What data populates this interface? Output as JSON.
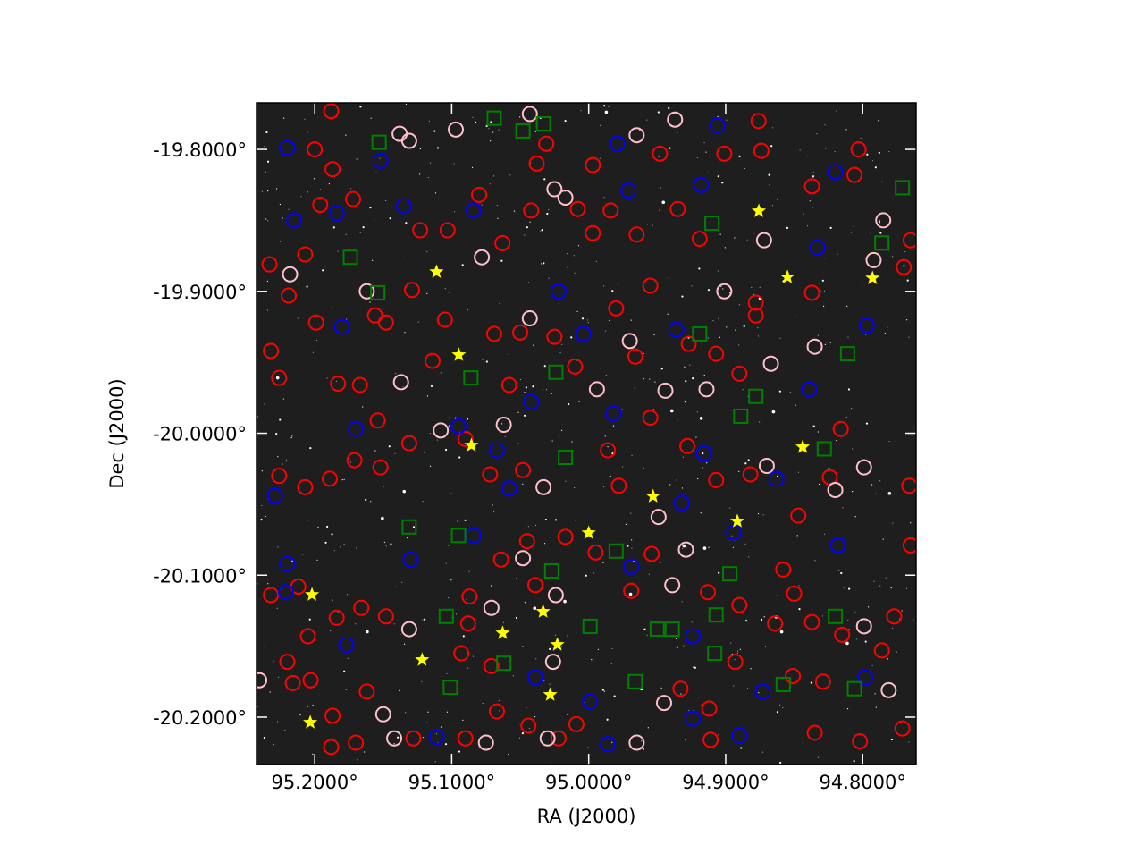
{
  "chart_data": {
    "type": "scatter",
    "xlabel": "RA (J2000)",
    "ylabel": "Dec (J2000)",
    "xlim": [
      95.2425,
      94.761
    ],
    "ylim": [
      -20.2334,
      -19.7672
    ],
    "xticks": [
      {
        "value": 95.2,
        "label": "95.2000°"
      },
      {
        "value": 95.1,
        "label": "95.1000°"
      },
      {
        "value": 95.0,
        "label": "95.0000°"
      },
      {
        "value": 94.9,
        "label": "94.9000°"
      },
      {
        "value": 94.8,
        "label": "94.8000°"
      }
    ],
    "yticks": [
      {
        "value": -19.8,
        "label": "-19.8000°"
      },
      {
        "value": -19.9,
        "label": "-19.9000°"
      },
      {
        "value": -20.0,
        "label": "-20.0000°"
      },
      {
        "value": -20.1,
        "label": "-20.1000°"
      },
      {
        "value": -20.2,
        "label": "-20.2000°"
      }
    ],
    "series": [
      {
        "color": "#ff0000",
        "marker": "circle",
        "x": [
          95.188,
          95.2,
          95.187,
          95.172,
          95.196,
          95.207,
          95.219,
          95.199,
          95.156,
          95.148,
          95.129,
          95.105,
          95.123,
          95.103,
          95.08,
          95.063,
          95.042,
          95.031,
          95.038,
          94.997,
          95.008,
          94.984,
          94.997,
          94.965,
          94.948,
          94.935,
          94.919,
          94.901,
          94.876,
          94.874,
          94.837,
          94.803,
          94.806,
          94.765,
          94.837,
          94.878,
          94.878,
          94.927,
          94.907,
          94.89,
          94.966,
          94.98,
          94.955,
          95.05,
          95.069,
          95.025,
          95.01,
          95.058,
          95.114,
          95.183,
          95.167,
          95.226,
          95.232,
          95.154,
          95.152,
          95.171,
          95.226,
          95.207,
          95.189,
          95.131,
          95.09,
          95.072,
          95.048,
          94.978,
          94.986,
          94.955,
          94.928,
          94.907,
          94.882,
          94.816,
          94.824,
          94.766,
          94.847,
          95.232,
          95.212,
          95.166,
          95.148,
          95.184,
          95.205,
          95.22,
          95.203,
          95.216,
          95.187,
          95.188,
          95.162,
          95.087,
          95.088,
          95.093,
          95.071,
          95.064,
          95.045,
          95.039,
          95.017,
          94.995,
          94.969,
          94.954,
          94.913,
          94.89,
          94.858,
          94.85,
          94.837,
          94.815,
          94.777,
          94.786,
          94.864,
          94.893,
          94.851,
          94.829,
          94.933,
          94.912,
          94.911,
          95.009,
          95.022,
          95.044,
          95.067,
          95.09,
          95.128,
          95.17,
          94.835,
          94.802,
          94.771,
          94.765,
          94.77,
          95.233
        ],
        "values": [
          -19.773,
          -19.8,
          -19.814,
          -19.835,
          -19.839,
          -19.874,
          -19.903,
          -19.922,
          -19.917,
          -19.922,
          -19.899,
          -19.92,
          -19.857,
          -19.857,
          -19.832,
          -19.866,
          -19.843,
          -19.796,
          -19.81,
          -19.811,
          -19.842,
          -19.843,
          -19.859,
          -19.86,
          -19.803,
          -19.842,
          -19.863,
          -19.803,
          -19.78,
          -19.801,
          -19.826,
          -19.8,
          -19.818,
          -19.864,
          -19.901,
          -19.908,
          -19.917,
          -19.937,
          -19.944,
          -19.958,
          -19.946,
          -19.912,
          -19.896,
          -19.929,
          -19.93,
          -19.932,
          -19.953,
          -19.966,
          -19.949,
          -19.965,
          -19.966,
          -19.961,
          -19.942,
          -19.991,
          -20.024,
          -20.019,
          -20.03,
          -20.038,
          -20.032,
          -20.007,
          -20.004,
          -20.029,
          -20.026,
          -20.037,
          -20.012,
          -19.989,
          -20.009,
          -20.033,
          -20.029,
          -19.997,
          -20.031,
          -20.037,
          -20.058,
          -20.114,
          -20.108,
          -20.123,
          -20.129,
          -20.13,
          -20.143,
          -20.161,
          -20.174,
          -20.176,
          -20.199,
          -20.221,
          -20.182,
          -20.115,
          -20.134,
          -20.155,
          -20.164,
          -20.089,
          -20.076,
          -20.107,
          -20.073,
          -20.084,
          -20.111,
          -20.085,
          -20.112,
          -20.121,
          -20.096,
          -20.113,
          -20.133,
          -20.142,
          -20.129,
          -20.153,
          -20.134,
          -20.161,
          -20.171,
          -20.175,
          -20.18,
          -20.194,
          -20.216,
          -20.205,
          -20.215,
          -20.206,
          -20.196,
          -20.215,
          -20.215,
          -20.218,
          -20.211,
          -20.217,
          -20.208,
          -20.079,
          -19.883,
          -19.881
        ]
      },
      {
        "color": "#ffc0cb",
        "marker": "circle",
        "x": [
          95.138,
          95.131,
          95.097,
          95.043,
          95.017,
          95.025,
          94.937,
          94.965,
          95.218,
          95.162,
          95.078,
          95.043,
          94.97,
          94.901,
          94.872,
          94.867,
          94.835,
          94.785,
          94.792,
          95.137,
          95.108,
          95.062,
          94.994,
          94.944,
          94.914,
          94.87,
          94.799,
          94.82,
          95.033,
          94.949,
          94.929,
          94.939,
          95.048,
          95.024,
          95.071,
          95.131,
          95.026,
          94.945,
          94.781,
          94.799,
          95.15,
          95.142,
          95.075,
          95.03,
          94.965,
          95.2405
        ],
        "values": [
          -19.789,
          -19.794,
          -19.786,
          -19.775,
          -19.834,
          -19.828,
          -19.779,
          -19.79,
          -19.888,
          -19.9,
          -19.876,
          -19.919,
          -19.935,
          -19.9,
          -19.864,
          -19.951,
          -19.939,
          -19.85,
          -19.878,
          -19.964,
          -19.998,
          -19.994,
          -19.969,
          -19.97,
          -19.969,
          -20.023,
          -20.024,
          -20.04,
          -20.038,
          -20.059,
          -20.082,
          -20.107,
          -20.088,
          -20.114,
          -20.123,
          -20.138,
          -20.161,
          -20.19,
          -20.181,
          -20.136,
          -20.198,
          -20.215,
          -20.218,
          -20.215,
          -20.218,
          -20.174
        ]
      },
      {
        "color": "#0000ff",
        "marker": "circle",
        "x": [
          95.22,
          95.152,
          95.215,
          95.184,
          95.135,
          95.084,
          94.979,
          94.906,
          94.971,
          94.918,
          94.833,
          94.82,
          94.797,
          94.936,
          95.004,
          95.022,
          95.18,
          95.17,
          95.095,
          95.067,
          95.042,
          94.982,
          94.916,
          94.863,
          94.839,
          95.058,
          94.932,
          95.229,
          95.22,
          95.221,
          94.818,
          94.894,
          95.084,
          95.13,
          94.969,
          95.177,
          94.924,
          95.039,
          94.999,
          94.986,
          95.111,
          94.89,
          94.873,
          94.798,
          94.924
        ],
        "values": [
          -19.799,
          -19.808,
          -19.85,
          -19.845,
          -19.84,
          -19.843,
          -19.796,
          -19.783,
          -19.829,
          -19.825,
          -19.869,
          -19.816,
          -19.924,
          -19.927,
          -19.93,
          -19.9,
          -19.925,
          -19.997,
          -19.995,
          -20.012,
          -19.978,
          -19.986,
          -20.014,
          -20.032,
          -19.969,
          -20.039,
          -20.049,
          -20.044,
          -20.092,
          -20.112,
          -20.079,
          -20.07,
          -20.072,
          -20.089,
          -20.094,
          -20.149,
          -20.143,
          -20.172,
          -20.189,
          -20.219,
          -20.214,
          -20.213,
          -20.182,
          -20.172,
          -20.201
        ]
      },
      {
        "color": "#008000",
        "marker": "square",
        "x": [
          95.153,
          95.154,
          95.174,
          95.086,
          95.024,
          95.017,
          94.91,
          94.919,
          94.878,
          94.889,
          94.828,
          94.811,
          94.786,
          94.771,
          95.131,
          95.095,
          95.027,
          94.98,
          94.897,
          94.907,
          95.104,
          94.999,
          94.95,
          94.939,
          94.82,
          95.062,
          95.101,
          94.966,
          94.908,
          94.858,
          94.806,
          95.069,
          95.048,
          95.033
        ],
        "values": [
          -19.795,
          -19.901,
          -19.876,
          -19.961,
          -19.957,
          -20.017,
          -19.852,
          -19.93,
          -19.974,
          -19.988,
          -20.011,
          -19.944,
          -19.866,
          -19.827,
          -20.066,
          -20.072,
          -20.097,
          -20.083,
          -20.099,
          -20.128,
          -20.129,
          -20.136,
          -20.138,
          -20.138,
          -20.129,
          -20.162,
          -20.179,
          -20.175,
          -20.155,
          -20.177,
          -20.18,
          -19.778,
          -19.787,
          -19.782
        ]
      },
      {
        "color": "#ffff00",
        "marker": "star",
        "x": [
          94.8758,
          95.1111,
          94.8549,
          94.7928,
          95.0948,
          94.8438,
          95.0856,
          94.953,
          94.8915,
          95.0,
          95.202,
          95.0333,
          95.0628,
          95.0229,
          95.1216,
          95.0281,
          95.2033
        ],
        "values": [
          -19.8434,
          -19.8863,
          -19.89,
          -19.8907,
          -19.9448,
          -20.0097,
          -20.0085,
          -20.0444,
          -20.062,
          -20.0702,
          -20.1137,
          -20.1256,
          -20.1407,
          -20.1489,
          -20.1596,
          -20.1842,
          -20.2037
        ]
      }
    ]
  }
}
